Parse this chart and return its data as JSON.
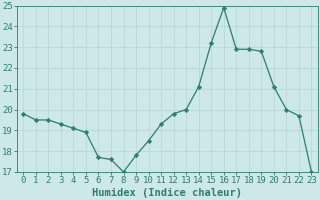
{
  "x": [
    0,
    1,
    2,
    3,
    4,
    5,
    6,
    7,
    8,
    9,
    10,
    11,
    12,
    13,
    14,
    15,
    16,
    17,
    18,
    19,
    20,
    21,
    22,
    23
  ],
  "y": [
    19.8,
    19.5,
    19.5,
    19.3,
    19.1,
    18.9,
    17.7,
    17.6,
    17.0,
    17.8,
    18.5,
    19.3,
    19.8,
    20.0,
    21.1,
    23.2,
    24.9,
    22.9,
    22.9,
    22.8,
    21.1,
    20.0,
    19.7,
    17.0
  ],
  "line_color": "#2e7d6e",
  "marker": "D",
  "marker_size": 2.2,
  "background_color": "#cce9e7",
  "grid_color": "#b8d8d6",
  "xlabel": "Humidex (Indice chaleur)",
  "xlim": [
    -0.5,
    23.5
  ],
  "ylim": [
    17,
    25
  ],
  "yticks": [
    17,
    18,
    19,
    20,
    21,
    22,
    23,
    24,
    25
  ],
  "xticks": [
    0,
    1,
    2,
    3,
    4,
    5,
    6,
    7,
    8,
    9,
    10,
    11,
    12,
    13,
    14,
    15,
    16,
    17,
    18,
    19,
    20,
    21,
    22,
    23
  ],
  "tick_color": "#2e7d6e",
  "label_color": "#2e7d6e",
  "font_size": 6.5,
  "xlabel_fontsize": 7.5
}
